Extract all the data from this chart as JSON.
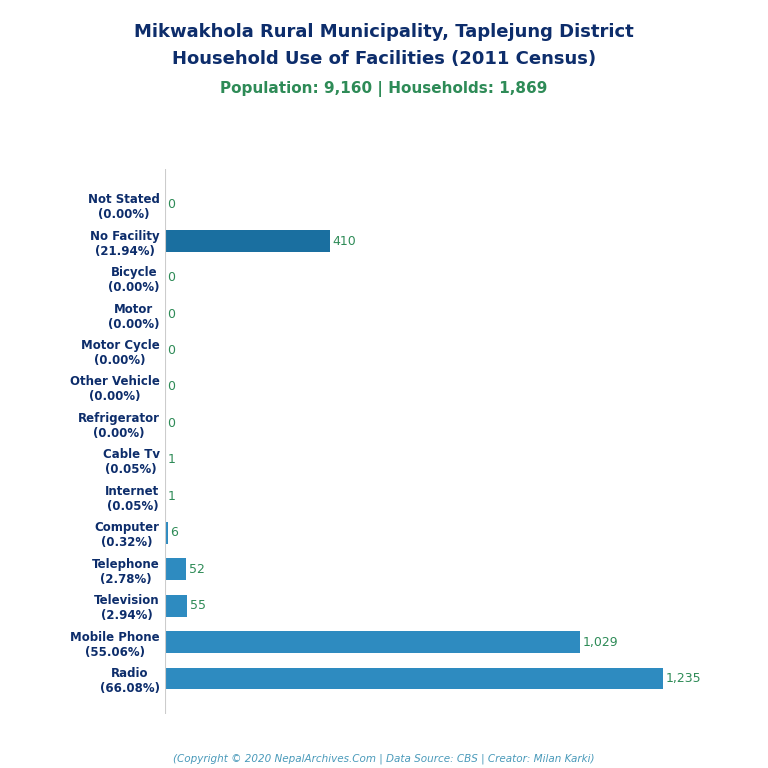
{
  "title_line1": "Mikwakhola Rural Municipality, Taplejung District",
  "title_line2": "Household Use of Facilities (2011 Census)",
  "subtitle": "Population: 9,160 | Households: 1,869",
  "footer": "(Copyright © 2020 NepalArchives.Com | Data Source: CBS | Creator: Milan Karki)",
  "categories": [
    "Radio\n(66.08%)",
    "Mobile Phone\n(55.06%)",
    "Television\n(2.94%)",
    "Telephone\n(2.78%)",
    "Computer\n(0.32%)",
    "Internet\n(0.05%)",
    "Cable Tv\n(0.05%)",
    "Refrigerator\n(0.00%)",
    "Other Vehicle\n(0.00%)",
    "Motor Cycle\n(0.00%)",
    "Motor\n(0.00%)",
    "Bicycle\n(0.00%)",
    "No Facility\n(21.94%)",
    "Not Stated\n(0.00%)"
  ],
  "values": [
    1235,
    1029,
    55,
    52,
    6,
    1,
    1,
    0,
    0,
    0,
    0,
    0,
    410,
    0
  ],
  "bar_color": "#2e8bc0",
  "no_facility_color": "#1a6fa0",
  "value_color": "#2e8b57",
  "title_color": "#0d2d6b",
  "subtitle_color": "#2e8b57",
  "footer_color": "#4a9aba",
  "ylabel_color": "#0d2d6b",
  "background_color": "#ffffff",
  "xlim": [
    0,
    1400
  ],
  "title_fontsize": 13,
  "subtitle_fontsize": 11,
  "label_fontsize": 8.5,
  "value_fontsize": 9,
  "footer_fontsize": 7.5
}
